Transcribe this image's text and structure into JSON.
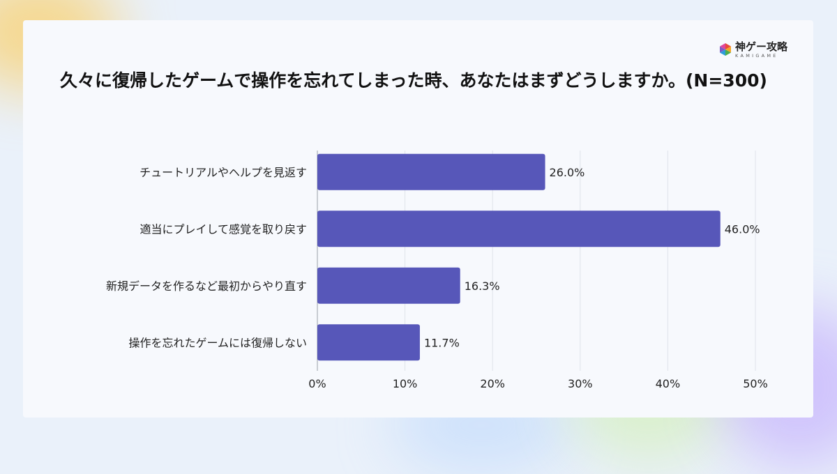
{
  "logo": {
    "name": "神ゲー攻略",
    "sub": "KAMIGAME"
  },
  "chart_data": {
    "type": "bar",
    "orientation": "horizontal",
    "title": "久々に復帰したゲームで操作を忘れてしまった時、あなたはまずどうしますか。(N=300)",
    "categories": [
      "チュートリアルやヘルプを見返す",
      "適当にプレイして感覚を取り戻す",
      "新規データを作るなど最初からやり直す",
      "操作を忘れたゲームには復帰しない"
    ],
    "values": [
      26.0,
      46.0,
      16.3,
      11.7
    ],
    "value_labels": [
      "26.0%",
      "46.0%",
      "16.3%",
      "11.7%"
    ],
    "xlim": [
      0,
      50
    ],
    "xticks": [
      0,
      10,
      20,
      30,
      40,
      50
    ],
    "xtick_labels": [
      "0%",
      "10%",
      "20%",
      "30%",
      "40%",
      "50%"
    ],
    "xlabel": "",
    "ylabel": "",
    "grid": true,
    "bar_color": "#5757b9"
  }
}
